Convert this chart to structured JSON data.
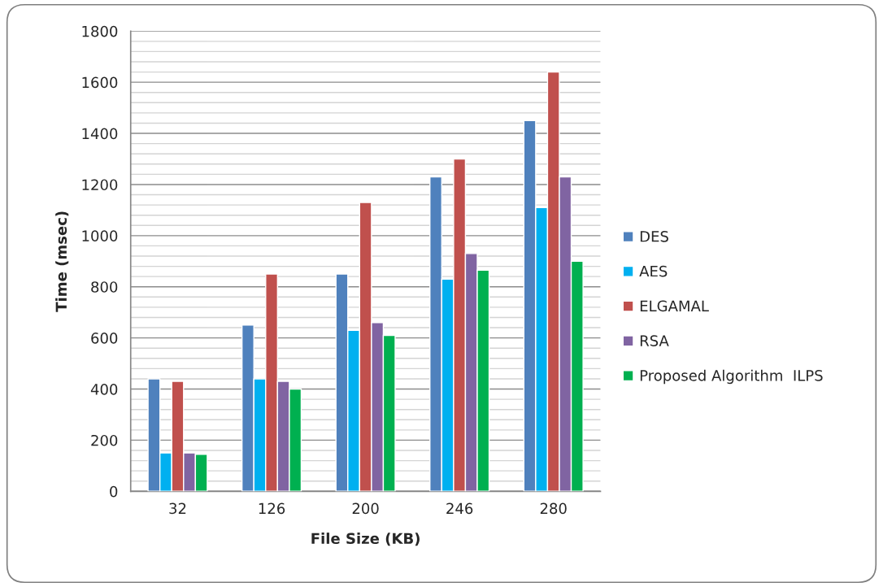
{
  "chart_data": {
    "type": "bar",
    "xlabel": "File Size (KB)",
    "ylabel": "Time (msec)",
    "categories": [
      "32",
      "126",
      "200",
      "246",
      "280"
    ],
    "series": [
      {
        "name": "DES",
        "color": "#4f81bd",
        "values": [
          440,
          650,
          850,
          1230,
          1450
        ]
      },
      {
        "name": "AES",
        "color": "#00b0f0",
        "values": [
          150,
          440,
          630,
          830,
          1110
        ]
      },
      {
        "name": "ELGAMAL",
        "color": "#c0504d",
        "values": [
          430,
          850,
          1130,
          1300,
          1640
        ]
      },
      {
        "name": "RSA",
        "color": "#8064a2",
        "values": [
          150,
          430,
          660,
          930,
          1230
        ]
      },
      {
        "name": "Proposed Algorithm  ILPS",
        "color": "#00b050",
        "values": [
          145,
          400,
          610,
          865,
          900
        ]
      }
    ],
    "ylim": [
      0,
      1800
    ],
    "yticks": [
      0,
      {
        "value": 40,
        "label": null
      },
      {
        "value": 80,
        "label": null
      },
      {
        "value": 120,
        "label": null
      },
      {
        "value": 160,
        "label": null
      },
      200,
      {
        "value": 240,
        "label": null
      },
      {
        "value": 280,
        "label": null
      },
      {
        "value": 320,
        "label": null
      },
      {
        "value": 360,
        "label": null
      },
      400,
      {
        "value": 440,
        "label": null
      },
      {
        "value": 480,
        "label": null
      },
      {
        "value": 520,
        "label": null
      },
      {
        "value": 560,
        "label": null
      },
      600,
      {
        "value": 640,
        "label": null
      },
      {
        "value": 680,
        "label": null
      },
      {
        "value": 720,
        "label": null
      },
      {
        "value": 760,
        "label": null
      },
      800,
      {
        "value": 840,
        "label": null
      },
      {
        "value": 880,
        "label": null
      },
      {
        "value": 920,
        "label": null
      },
      {
        "value": 960,
        "label": null
      },
      1000,
      {
        "value": 1040,
        "label": null
      },
      {
        "value": 1080,
        "label": null
      },
      {
        "value": 1120,
        "label": null
      },
      {
        "value": 1160,
        "label": null
      },
      1200,
      {
        "value": 1240,
        "label": null
      },
      {
        "value": 1280,
        "label": null
      },
      {
        "value": 1320,
        "label": null
      },
      {
        "value": 1360,
        "label": null
      },
      1400,
      {
        "value": 1440,
        "label": null
      },
      {
        "value": 1480,
        "label": null
      },
      {
        "value": 1520,
        "label": null
      },
      {
        "value": 1560,
        "label": null
      },
      1600,
      {
        "value": 1640,
        "label": null
      },
      {
        "value": 1680,
        "label": null
      },
      {
        "value": 1720,
        "label": null
      },
      {
        "value": 1760,
        "label": null
      },
      1800
    ],
    "grid": "y",
    "legend": "right"
  }
}
